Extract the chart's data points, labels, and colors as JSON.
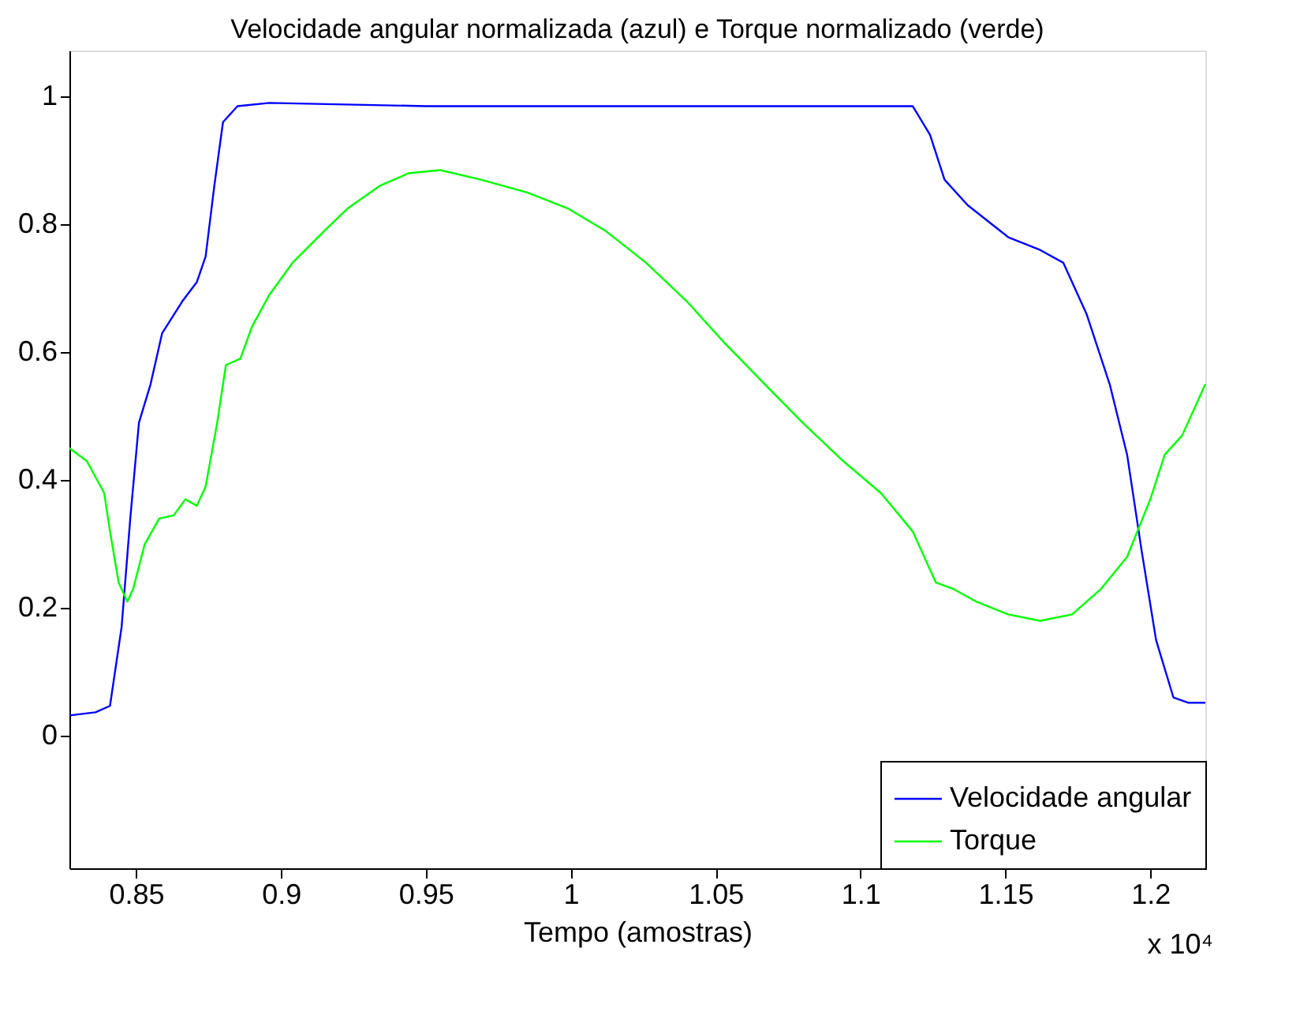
{
  "chart_data": {
    "type": "line",
    "title": "Velocidade angular normalizada (azul) e Torque normalizado (verde)",
    "xlabel": "Tempo (amostras)",
    "annotations": [
      "x 10⁴"
    ],
    "xlim": [
      0.827,
      1.219
    ],
    "xticks": [
      0.85,
      0.9,
      0.95,
      1,
      1.05,
      1.1,
      1.15,
      1.2
    ],
    "ylim": [
      -0.207,
      1.072
    ],
    "yticks": [
      0,
      0.2,
      0.4,
      0.6,
      0.8,
      1
    ],
    "grid": false,
    "legend": "bottom right",
    "line_style": "solid",
    "marker": "none",
    "series": [
      {
        "name": "Velocidade angular",
        "color": "#0000ff",
        "x": [
          0.827,
          0.836,
          0.841,
          0.845,
          0.848,
          0.851,
          0.855,
          0.859,
          0.866,
          0.871,
          0.874,
          0.877,
          0.88,
          0.885,
          0.896,
          0.95,
          1.0,
          1.05,
          1.1,
          1.118,
          1.124,
          1.129,
          1.137,
          1.151,
          1.162,
          1.17,
          1.178,
          1.186,
          1.192,
          1.197,
          1.202,
          1.208,
          1.213,
          1.219
        ],
        "values": [
          0.032,
          0.037,
          0.047,
          0.17,
          0.34,
          0.49,
          0.55,
          0.63,
          0.68,
          0.71,
          0.75,
          0.86,
          0.96,
          0.985,
          0.99,
          0.985,
          0.985,
          0.985,
          0.985,
          0.985,
          0.94,
          0.87,
          0.83,
          0.78,
          0.76,
          0.74,
          0.66,
          0.55,
          0.44,
          0.29,
          0.15,
          0.06,
          0.052,
          0.052
        ]
      },
      {
        "name": "Torque",
        "color": "#00ff00",
        "x": [
          0.827,
          0.833,
          0.839,
          0.841,
          0.844,
          0.847,
          0.849,
          0.853,
          0.858,
          0.863,
          0.867,
          0.871,
          0.874,
          0.878,
          0.881,
          0.886,
          0.89,
          0.896,
          0.904,
          0.915,
          0.923,
          0.934,
          0.944,
          0.955,
          0.969,
          0.985,
          0.999,
          1.012,
          1.026,
          1.04,
          1.053,
          1.067,
          1.08,
          1.094,
          1.107,
          1.118,
          1.126,
          1.132,
          1.14,
          1.151,
          1.162,
          1.173,
          1.183,
          1.192,
          1.2,
          1.205,
          1.211,
          1.219
        ],
        "values": [
          0.45,
          0.43,
          0.38,
          0.32,
          0.24,
          0.21,
          0.23,
          0.3,
          0.34,
          0.345,
          0.37,
          0.36,
          0.39,
          0.49,
          0.58,
          0.59,
          0.64,
          0.69,
          0.74,
          0.79,
          0.825,
          0.86,
          0.88,
          0.885,
          0.87,
          0.85,
          0.825,
          0.79,
          0.74,
          0.68,
          0.615,
          0.55,
          0.49,
          0.43,
          0.38,
          0.32,
          0.24,
          0.23,
          0.21,
          0.19,
          0.18,
          0.19,
          0.23,
          0.28,
          0.37,
          0.44,
          0.47,
          0.55
        ]
      }
    ]
  }
}
